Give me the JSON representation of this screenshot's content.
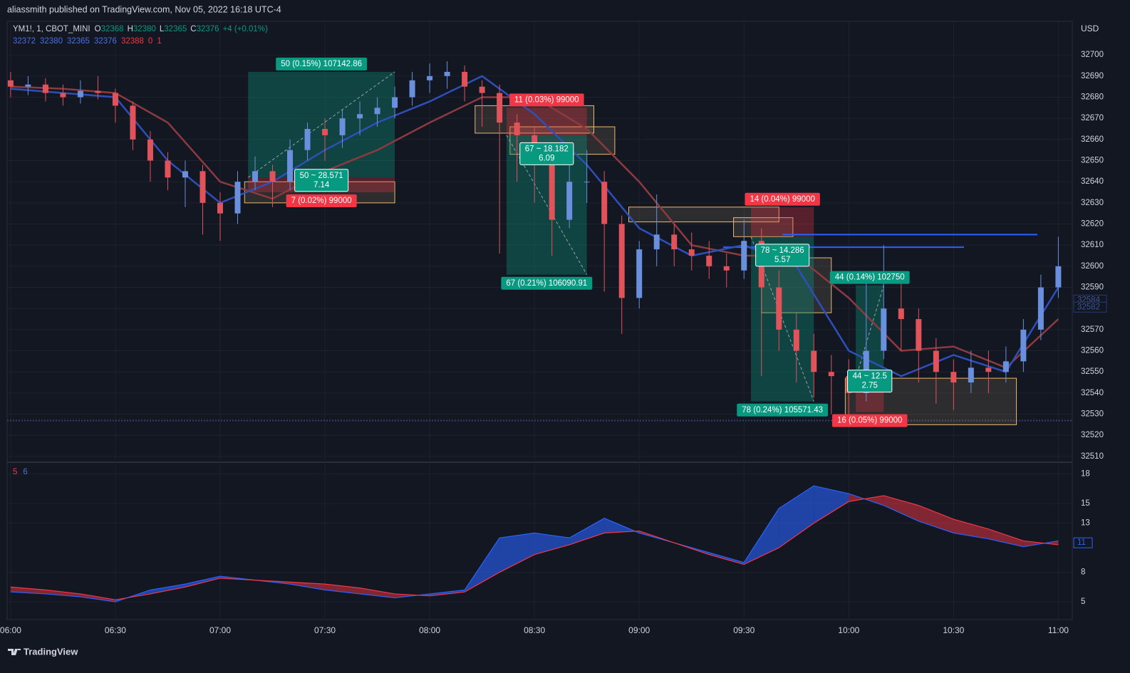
{
  "header": {
    "publisher": "aliassmith published on TradingView.com, Nov 05, 2022 16:18 UTC-4",
    "brand": "TradingView"
  },
  "chart_data": {
    "type": "candlestick",
    "symbol": "YM1!, 1, CBOT_MINI",
    "ohlc_legend": [
      {
        "label": "O",
        "value": 32368
      },
      {
        "label": "H",
        "value": 32380
      },
      {
        "label": "L",
        "value": 32365
      },
      {
        "label": "C",
        "value": 32376
      }
    ],
    "change": "+4 (+0.01%)",
    "ma_legend": [
      {
        "value": 32372,
        "color": "#4a6fe0"
      },
      {
        "value": 32380,
        "color": "#4a6fe0"
      },
      {
        "value": 32365,
        "color": "#4a6fe0"
      },
      {
        "value": 32376,
        "color": "#4a6fe0"
      },
      {
        "value": 32388,
        "color": "#f23645"
      },
      {
        "value": 0,
        "color": "#f23645"
      },
      {
        "value": 1,
        "color": "#f23645"
      }
    ],
    "currency": "USD",
    "x": [
      "06:00",
      "06:05",
      "06:10",
      "06:15",
      "06:20",
      "06:25",
      "06:30",
      "06:35",
      "06:40",
      "06:45",
      "06:50",
      "06:55",
      "07:00",
      "07:05",
      "07:10",
      "07:15",
      "07:20",
      "07:25",
      "07:30",
      "07:35",
      "07:40",
      "07:45",
      "07:50",
      "07:55",
      "08:00",
      "08:05",
      "08:10",
      "08:15",
      "08:20",
      "08:25",
      "08:30",
      "08:35",
      "08:40",
      "08:45",
      "08:50",
      "08:55",
      "09:00",
      "09:05",
      "09:10",
      "09:15",
      "09:20",
      "09:25",
      "09:30",
      "09:35",
      "09:40",
      "09:45",
      "09:50",
      "09:55",
      "10:00",
      "10:05",
      "10:10",
      "10:15",
      "10:20",
      "10:25",
      "10:30",
      "10:35",
      "10:40",
      "10:45",
      "10:50",
      "10:55",
      "11:00"
    ],
    "open": [
      32688,
      32685,
      32686,
      32682,
      32680,
      32683,
      32682,
      32676,
      32660,
      32650,
      32642,
      32645,
      32630,
      32625,
      32640,
      32645,
      32640,
      32655,
      32665,
      32662,
      32670,
      32672,
      32675,
      32680,
      32688,
      32690,
      32692,
      32685,
      32682,
      32668,
      32662,
      32648,
      32622,
      32640,
      32640,
      32620,
      32585,
      32608,
      32615,
      32608,
      32605,
      32600,
      32598,
      32612,
      32590,
      32570,
      32560,
      32550,
      32548,
      32540,
      32560,
      32580,
      32575,
      32560,
      32550,
      32545,
      32552,
      32550,
      32555,
      32570,
      32590
    ],
    "high": [
      32692,
      32690,
      32689,
      32686,
      32688,
      32690,
      32684,
      32678,
      32664,
      32654,
      32650,
      32648,
      32635,
      32645,
      32652,
      32648,
      32660,
      32668,
      32670,
      32674,
      32678,
      32680,
      32685,
      32692,
      32696,
      32697,
      32695,
      32688,
      32686,
      32672,
      32666,
      32655,
      32648,
      32655,
      32645,
      32624,
      32612,
      32634,
      32620,
      32616,
      32612,
      32606,
      32622,
      32618,
      32598,
      32578,
      32568,
      32558,
      32556,
      32592,
      32610,
      32592,
      32580,
      32566,
      32556,
      32560,
      32560,
      32562,
      32575,
      32596,
      32614
    ],
    "low": [
      32680,
      32681,
      32678,
      32676,
      32677,
      32679,
      32668,
      32655,
      32640,
      32636,
      32628,
      32615,
      32612,
      32620,
      32636,
      32628,
      32636,
      32650,
      32650,
      32656,
      32662,
      32666,
      32670,
      32676,
      32682,
      32684,
      32678,
      32666,
      32606,
      32640,
      32630,
      32605,
      32618,
      32630,
      32588,
      32568,
      32580,
      32600,
      32600,
      32598,
      32594,
      32590,
      32594,
      32548,
      32560,
      32545,
      32538,
      32530,
      32528,
      32536,
      32556,
      32560,
      32545,
      32535,
      32532,
      32540,
      32540,
      32545,
      32550,
      32565,
      32585
    ],
    "close": [
      32685,
      32686,
      32682,
      32680,
      32683,
      32682,
      32676,
      32660,
      32650,
      32642,
      32645,
      32630,
      32625,
      32640,
      32645,
      32640,
      32655,
      32665,
      32662,
      32670,
      32672,
      32675,
      32680,
      32688,
      32690,
      32692,
      32685,
      32682,
      32668,
      32662,
      32648,
      32622,
      32640,
      32640,
      32620,
      32585,
      32608,
      32615,
      32608,
      32605,
      32600,
      32598,
      32612,
      32590,
      32570,
      32560,
      32550,
      32548,
      32540,
      32560,
      32580,
      32575,
      32560,
      32550,
      32545,
      32552,
      32550,
      32555,
      32570,
      32590,
      32600
    ],
    "up_color": "#6a8fdc",
    "down_color": "#e0535a",
    "xlim": [
      "05:59",
      "11:04"
    ],
    "xticks": [
      "06:00",
      "06:30",
      "07:00",
      "07:30",
      "08:00",
      "08:30",
      "09:00",
      "09:30",
      "10:00",
      "10:30",
      "11:00"
    ],
    "ylim": [
      32507.6,
      32715.9
    ],
    "yticks": [
      32510,
      32520,
      32530,
      32540,
      32550,
      32560,
      32570,
      32580,
      32590,
      32600,
      32610,
      32620,
      32630,
      32640,
      32650,
      32660,
      32670,
      32680,
      32690,
      32700
    ],
    "grid": true,
    "ma_x": [
      "06:00",
      "06:15",
      "06:30",
      "06:45",
      "07:00",
      "07:15",
      "07:30",
      "07:45",
      "08:00",
      "08:15",
      "08:30",
      "08:45",
      "09:00",
      "09:15",
      "09:30",
      "09:45",
      "10:00",
      "10:15",
      "10:30",
      "10:45",
      "11:00"
    ],
    "moving_averages": [
      {
        "color": "#8b3a40",
        "values": [
          32685,
          32684,
          32682,
          32668,
          32640,
          32632,
          32645,
          32655,
          32668,
          32680,
          32680,
          32665,
          32640,
          32610,
          32605,
          32605,
          32585,
          32560,
          32562,
          32552,
          32575
        ]
      },
      {
        "color": "#2e4fb8",
        "values": [
          32684,
          32682,
          32680,
          32650,
          32630,
          32640,
          32655,
          32668,
          32678,
          32690,
          32672,
          32648,
          32618,
          32605,
          32610,
          32600,
          32560,
          32548,
          32558,
          32550,
          32590
        ]
      }
    ],
    "positions": [
      {
        "start": "07:08",
        "end": "07:50",
        "entry": 32642,
        "target": 32692,
        "stop": 32635,
        "target_label": "50 (0.15%) 107142.86",
        "stop_label": "7 (0.02%) 99000",
        "center": [
          "50 ~ 28.571",
          "7.14"
        ]
      },
      {
        "start": "08:22",
        "end": "08:45",
        "entry": 32662,
        "target": 32596,
        "stop": 32675,
        "target_label": "67 (0.21%) 106090.91",
        "stop_label": "11 (0.03%) 99000",
        "center": [
          "67 ~ 18.182",
          "6.09"
        ]
      },
      {
        "start": "09:32",
        "end": "09:50",
        "entry": 32614,
        "target": 32536,
        "stop": 32628,
        "target_label": "78 (0.24%) 105571.43",
        "stop_label": "14 (0.04%) 99000",
        "center": [
          "78 ~ 14.286",
          "5.57"
        ]
      },
      {
        "start": "10:02",
        "end": "10:10",
        "entry": 32547,
        "target": 32591,
        "stop": 32531,
        "target_label": "44 (0.14%) 102750",
        "stop_label": "16 (0.05%) 99000",
        "center": [
          "44 ~ 12.5",
          "2.75"
        ]
      }
    ],
    "zones": [
      {
        "x": [
          "07:07",
          "07:50"
        ],
        "y": [
          32630,
          32640
        ]
      },
      {
        "x": [
          "08:13",
          "08:47"
        ],
        "y": [
          32663,
          32676
        ]
      },
      {
        "x": [
          "08:23",
          "08:53"
        ],
        "y": [
          32653,
          32666
        ]
      },
      {
        "x": [
          "08:57",
          "09:40"
        ],
        "y": [
          32621,
          32628
        ]
      },
      {
        "x": [
          "09:27",
          "09:44"
        ],
        "y": [
          32614,
          32623
        ]
      },
      {
        "x": [
          "09:35",
          "09:55"
        ],
        "y": [
          32578,
          32604
        ]
      },
      {
        "x": [
          "09:59",
          "10:48"
        ],
        "y": [
          32525,
          32547
        ]
      }
    ],
    "lines": [
      {
        "x": [
          "09:41",
          "10:54"
        ],
        "value": 32615
      },
      {
        "x": [
          "09:24",
          "10:33"
        ],
        "value": 32609
      }
    ],
    "price_line": 32527,
    "price_labels": [
      32584,
      32582
    ],
    "indicator": {
      "legend": [
        {
          "value": 5,
          "color": "#f23645"
        },
        {
          "value": 6,
          "color": "#4a6fe0"
        }
      ],
      "x": [
        "06:00",
        "06:10",
        "06:20",
        "06:30",
        "06:40",
        "06:50",
        "07:00",
        "07:10",
        "07:20",
        "07:30",
        "07:40",
        "07:50",
        "08:00",
        "08:10",
        "08:20",
        "08:30",
        "08:40",
        "08:50",
        "09:00",
        "09:10",
        "09:20",
        "09:30",
        "09:40",
        "09:50",
        "10:00",
        "10:10",
        "10:20",
        "10:30",
        "10:40",
        "10:50",
        "11:00"
      ],
      "series": [
        {
          "color": "#2962ff",
          "values": [
            6.0,
            5.8,
            5.5,
            5.0,
            6.2,
            6.8,
            7.6,
            7.2,
            6.8,
            6.2,
            5.8,
            5.4,
            5.8,
            6.2,
            11.5,
            12.0,
            11.5,
            13.5,
            12.0,
            11.0,
            10.0,
            9.0,
            14.5,
            16.8,
            16.0,
            14.8,
            13.2,
            12.0,
            11.4,
            10.6,
            11.2
          ]
        },
        {
          "color": "#f23645",
          "values": [
            6.5,
            6.2,
            5.8,
            5.2,
            5.8,
            6.5,
            7.4,
            7.2,
            7.0,
            6.8,
            6.4,
            5.8,
            5.6,
            6.0,
            8.0,
            9.8,
            10.8,
            12.0,
            12.2,
            11.0,
            9.8,
            8.8,
            10.5,
            13.0,
            15.2,
            15.8,
            14.8,
            13.4,
            12.4,
            11.2,
            10.8
          ]
        }
      ],
      "ylim": [
        3.33,
        19.13
      ],
      "yticks": [
        5,
        8,
        13,
        15,
        18
      ],
      "price_label": 11
    }
  }
}
